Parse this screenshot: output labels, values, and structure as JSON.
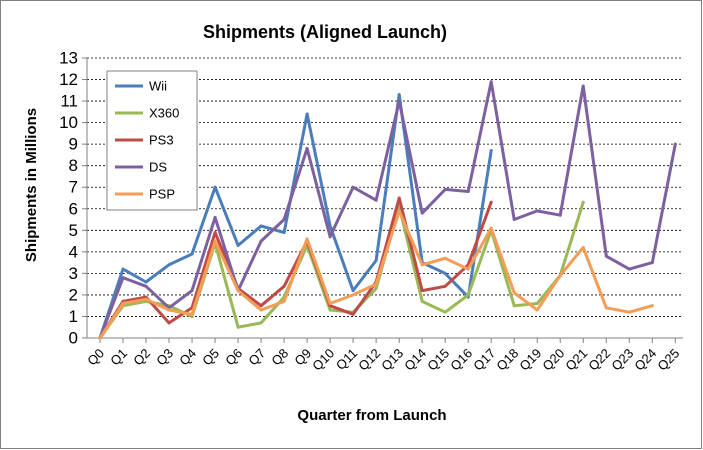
{
  "chart_data": {
    "type": "line",
    "title": "Shipments (Aligned Launch)",
    "xlabel": "Quarter from Launch",
    "ylabel": "Shipments in Millions",
    "ylim": [
      0,
      13
    ],
    "yticks": [
      0,
      1,
      2,
      3,
      4,
      5,
      6,
      7,
      8,
      9,
      10,
      11,
      12,
      13
    ],
    "grid": true,
    "legend_position": "top-left",
    "categories": [
      "Q0",
      "Q1",
      "Q2",
      "Q3",
      "Q4",
      "Q5",
      "Q6",
      "Q7",
      "Q8",
      "Q9",
      "Q10",
      "Q11",
      "Q12",
      "Q13",
      "Q14",
      "Q15",
      "Q16",
      "Q17",
      "Q18",
      "Q19",
      "Q20",
      "Q21",
      "Q22",
      "Q23",
      "Q24",
      "Q25"
    ],
    "series": [
      {
        "name": "Wii",
        "color": "#4a7ebb",
        "values": [
          0,
          3.2,
          2.6,
          3.4,
          3.9,
          7.0,
          4.3,
          5.2,
          4.9,
          10.4,
          5.2,
          2.2,
          3.6,
          11.3,
          3.5,
          3.0,
          1.9,
          8.7,
          null,
          null,
          null,
          null,
          null,
          null,
          null,
          null
        ]
      },
      {
        "name": "X360",
        "color": "#98b954",
        "values": [
          0,
          1.5,
          1.7,
          1.5,
          1.0,
          4.4,
          0.5,
          0.7,
          1.9,
          4.3,
          1.3,
          1.2,
          2.3,
          6.1,
          1.7,
          1.2,
          2.0,
          5.0,
          1.5,
          1.6,
          2.9,
          6.3,
          null,
          null,
          null,
          null
        ]
      },
      {
        "name": "PS3",
        "color": "#be4b48",
        "values": [
          0,
          1.7,
          1.9,
          0.7,
          1.4,
          4.9,
          2.3,
          1.5,
          2.4,
          4.5,
          1.5,
          1.1,
          2.6,
          6.5,
          2.2,
          2.4,
          3.4,
          6.3,
          null,
          null,
          null,
          null,
          null,
          null,
          null,
          null
        ]
      },
      {
        "name": "DS",
        "color": "#7d60a0",
        "values": [
          0,
          2.8,
          2.4,
          1.4,
          2.2,
          5.6,
          2.2,
          4.5,
          5.5,
          8.8,
          4.7,
          7.0,
          6.4,
          11.0,
          5.8,
          6.9,
          6.8,
          11.9,
          5.5,
          5.9,
          5.7,
          11.7,
          3.8,
          3.2,
          3.5,
          9.0
        ]
      },
      {
        "name": "PSP",
        "color": "#f59d56",
        "values": [
          0,
          1.6,
          1.8,
          1.3,
          1.1,
          4.5,
          2.2,
          1.3,
          1.7,
          4.6,
          1.6,
          2.0,
          2.5,
          5.9,
          3.4,
          3.7,
          3.2,
          5.1,
          2.1,
          1.3,
          2.9,
          4.2,
          1.4,
          1.2,
          1.5,
          null
        ]
      }
    ]
  }
}
